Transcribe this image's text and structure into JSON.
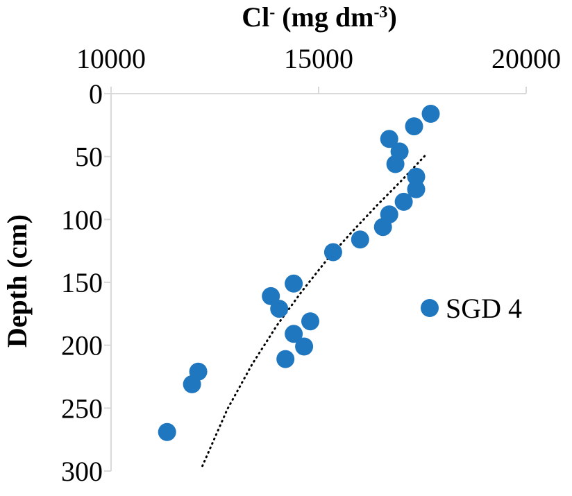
{
  "chart_data": {
    "type": "scatter",
    "title": "",
    "xlabel": {
      "base": "Cl",
      "sup": "-",
      "unit_open": " (mg dm",
      "unit_sup": "-3",
      "unit_close": ")"
    },
    "ylabel": "Depth (cm)",
    "xlim": [
      10000,
      20000
    ],
    "ylim": [
      0,
      300
    ],
    "x_axis_position": "top",
    "y_axis_inverted": true,
    "x_ticks": [
      "10000",
      "15000",
      "20000"
    ],
    "y_ticks": [
      "0",
      "50",
      "100",
      "150",
      "200",
      "250",
      "300"
    ],
    "grid": false,
    "legend_position": "right",
    "series": [
      {
        "name": "SGD 4",
        "color": "#1f77c0",
        "x": [
          17700,
          17300,
          16700,
          16950,
          16850,
          17350,
          17350,
          17050,
          16700,
          16550,
          16000,
          15350,
          14400,
          13850,
          14050,
          14800,
          14400,
          14650,
          14200,
          12100,
          11950,
          11350
        ],
        "y": [
          16,
          26,
          36,
          46,
          56,
          66,
          76,
          86,
          96,
          106,
          116,
          126,
          151,
          161,
          171,
          181,
          191,
          201,
          211,
          221,
          231,
          269
        ]
      }
    ],
    "trendline": {
      "style": "dotted",
      "color": "#000000",
      "x": [
        12200,
        12800,
        13400,
        14000,
        14600,
        15200,
        15800,
        16400,
        17000,
        17600
      ],
      "y": [
        296,
        251,
        215,
        184,
        157,
        132,
        110,
        89,
        69,
        48
      ]
    }
  }
}
